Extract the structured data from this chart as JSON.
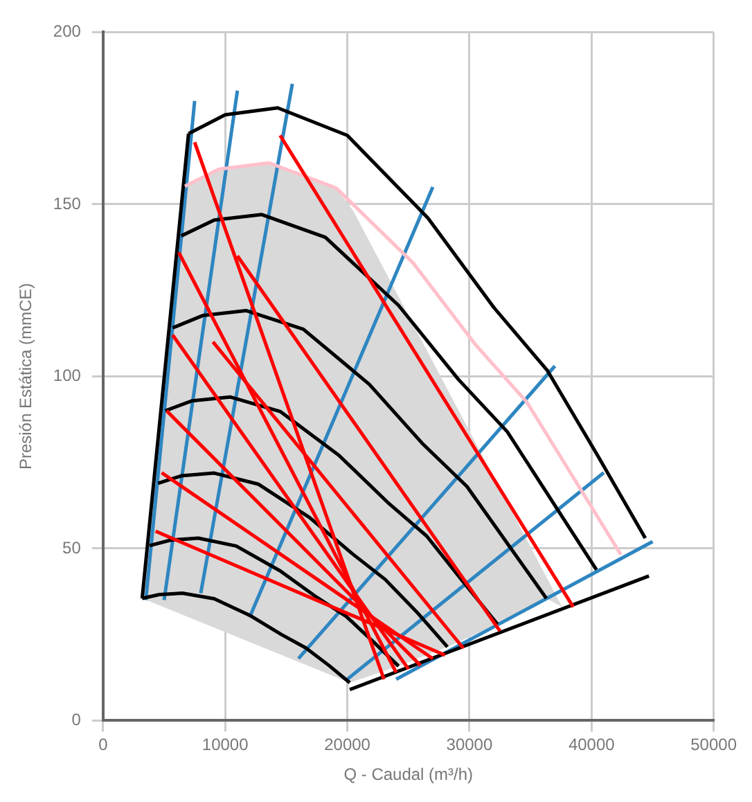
{
  "chart_data": {
    "type": "line",
    "xlabel": "Q - Caudal (m³/h)",
    "ylabel": "Presión Estática (mmCE)",
    "xlim": [
      0,
      50000
    ],
    "xticks": [
      0,
      10000,
      20000,
      30000,
      40000,
      50000
    ],
    "ylim": [
      0,
      200
    ],
    "yticks": [
      0,
      50,
      100,
      150,
      200
    ],
    "grid": true,
    "legend": false,
    "marker": "none",
    "line_style": "solid",
    "series": [
      {
        "type": "area",
        "color": "#d9d9d9",
        "x": [
          3200,
          6700,
          9500,
          13600,
          19100,
          20500,
          37600,
          36300,
          32300,
          28200,
          24200,
          20200,
          3200
        ],
        "values": [
          35.5,
          155.2,
          160.2,
          162,
          154.7,
          148,
          33,
          35.5,
          28,
          21.4,
          15.8,
          11,
          35.5
        ]
      },
      {
        "type": "line",
        "color": "#ff0000",
        "x": [
          7500,
          23000
        ],
        "values": [
          168,
          12
        ]
      },
      {
        "type": "line",
        "color": "#ff0000",
        "x": [
          6200,
          24000
        ],
        "values": [
          136,
          14
        ]
      },
      {
        "type": "line",
        "color": "#ff0000",
        "x": [
          5700,
          25000
        ],
        "values": [
          112,
          15
        ]
      },
      {
        "type": "line",
        "color": "#ff0000",
        "x": [
          5200,
          26000
        ],
        "values": [
          90,
          16
        ]
      },
      {
        "type": "line",
        "color": "#ff0000",
        "x": [
          4800,
          27000
        ],
        "values": [
          72,
          18
        ]
      },
      {
        "type": "line",
        "color": "#ff0000",
        "x": [
          4300,
          28000
        ],
        "values": [
          55,
          19
        ]
      },
      {
        "type": "line",
        "color": "#ff0000",
        "x": [
          9000,
          29500
        ],
        "values": [
          110,
          21
        ]
      },
      {
        "type": "line",
        "color": "#ff0000",
        "x": [
          11000,
          32500
        ],
        "values": [
          135,
          26
        ]
      },
      {
        "type": "line",
        "color": "#ff0000",
        "x": [
          14500,
          38500
        ],
        "values": [
          170,
          33
        ]
      },
      {
        "type": "line",
        "color": "#ffc0cb",
        "x": [
          6700,
          9500,
          13600,
          19100,
          25400,
          30500,
          34700,
          38600,
          42400
        ],
        "values": [
          155.2,
          160.2,
          162,
          154.7,
          132.9,
          109.2,
          92.5,
          70.1,
          48.2
        ]
      },
      {
        "type": "line",
        "color": "#000000",
        "x": [
          7000,
          10000,
          14300,
          20000,
          26600,
          32000,
          36400,
          40500,
          44400
        ],
        "values": [
          170.5,
          176,
          178,
          170,
          146,
          120,
          101.6,
          77,
          53
        ]
      },
      {
        "type": "line",
        "color": "#000000",
        "x": [
          6400,
          9100,
          13000,
          18200,
          24200,
          29100,
          33100,
          36800,
          40400
        ],
        "values": [
          140.8,
          145.4,
          147,
          140.4,
          120.6,
          99.1,
          83.9,
          63.6,
          43.8
        ]
      },
      {
        "type": "line",
        "color": "#000000",
        "x": [
          5700,
          8200,
          11700,
          16400,
          21800,
          26200,
          29800,
          33100,
          36300
        ],
        "values": [
          114.1,
          117.7,
          119.1,
          113.7,
          97.7,
          80.3,
          68,
          51.5,
          35.5
        ]
      },
      {
        "type": "line",
        "color": "#000000",
        "x": [
          5100,
          7300,
          10400,
          14500,
          19300,
          23300,
          26500,
          29400,
          32300
        ],
        "values": [
          90,
          92.9,
          94,
          89.8,
          77.1,
          63.4,
          53.6,
          40.7,
          28
        ]
      },
      {
        "type": "line",
        "color": "#000000",
        "x": [
          4500,
          6400,
          9100,
          12700,
          16900,
          20400,
          23100,
          25800,
          28200
        ],
        "values": [
          68.9,
          71.1,
          71.9,
          68.7,
          59,
          48.5,
          41,
          31.1,
          21.4
        ]
      },
      {
        "type": "line",
        "color": "#000000",
        "x": [
          3800,
          5500,
          7800,
          10900,
          14500,
          17500,
          19900,
          22100,
          24200
        ],
        "values": [
          50.8,
          52.4,
          53,
          50.7,
          43.5,
          35.8,
          30.3,
          23,
          15.8
        ]
      },
      {
        "type": "line",
        "color": "#000000",
        "x": [
          3200,
          4600,
          6500,
          9100,
          12100,
          14600,
          16600,
          18500,
          20200
        ],
        "values": [
          35.5,
          36.6,
          37,
          35.4,
          30.4,
          25,
          21.1,
          16,
          11
        ]
      },
      {
        "type": "line",
        "color": "#000000",
        "x": [
          3200,
          7000
        ],
        "values": [
          35.5,
          170.5
        ]
      },
      {
        "type": "line",
        "color": "#000000",
        "x": [
          20200,
          44700
        ],
        "values": [
          9,
          42
        ]
      },
      {
        "type": "line",
        "color": "#2e86c1",
        "x": [
          3500,
          7500
        ],
        "values": [
          35,
          180
        ]
      },
      {
        "type": "line",
        "color": "#2e86c1",
        "x": [
          5000,
          11000
        ],
        "values": [
          35,
          183
        ]
      },
      {
        "type": "line",
        "color": "#2e86c1",
        "x": [
          8000,
          15500
        ],
        "values": [
          37,
          185
        ]
      },
      {
        "type": "line",
        "color": "#2e86c1",
        "x": [
          12000,
          27000
        ],
        "values": [
          30,
          155
        ]
      },
      {
        "type": "line",
        "color": "#2e86c1",
        "x": [
          16000,
          37000
        ],
        "values": [
          18,
          103
        ]
      },
      {
        "type": "line",
        "color": "#2e86c1",
        "x": [
          20000,
          41000
        ],
        "values": [
          12,
          72
        ]
      },
      {
        "type": "line",
        "color": "#2e86c1",
        "x": [
          24000,
          45000
        ],
        "values": [
          12,
          52
        ]
      }
    ]
  }
}
